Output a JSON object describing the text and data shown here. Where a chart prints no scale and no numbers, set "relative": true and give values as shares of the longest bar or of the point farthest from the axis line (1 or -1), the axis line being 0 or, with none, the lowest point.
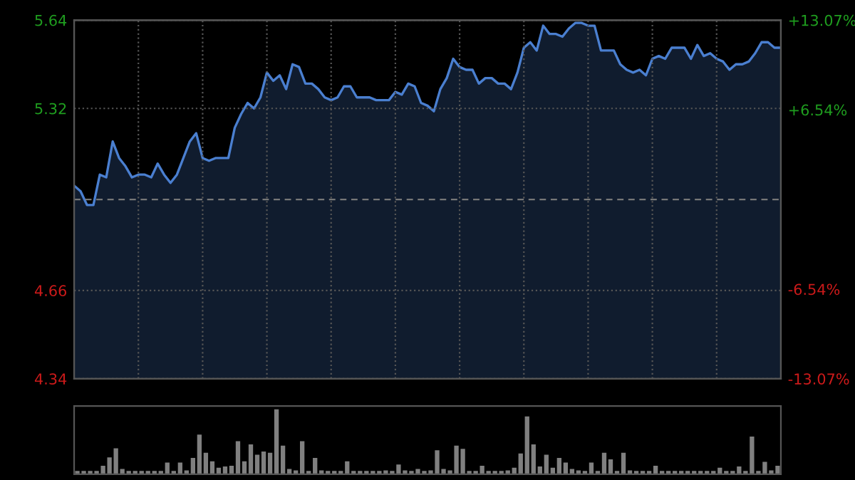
{
  "chart_data": [
    {
      "type": "area",
      "categories": [
        null,
        null,
        null,
        null,
        null,
        null,
        null,
        null,
        null,
        null,
        null,
        null,
        null,
        null,
        null,
        null,
        null,
        null,
        null,
        null,
        null,
        null,
        null,
        null,
        null,
        null,
        null,
        null,
        null,
        null,
        null,
        null,
        null,
        null,
        null,
        null,
        null,
        null,
        null,
        null,
        null,
        null,
        null,
        null,
        null,
        null,
        null,
        null,
        null,
        null,
        null,
        null,
        null,
        null,
        null,
        null,
        null,
        null,
        null,
        null,
        null,
        null,
        null,
        null,
        null,
        null,
        null,
        null,
        null,
        null,
        null,
        null,
        null,
        null,
        null,
        null,
        null,
        null,
        null,
        null,
        null,
        null,
        null,
        null,
        null,
        null,
        null,
        null,
        null,
        null,
        null,
        null,
        null,
        null,
        null,
        null,
        null,
        null,
        null,
        null,
        null,
        null,
        null,
        null,
        null,
        null,
        null,
        null,
        null,
        null,
        null
      ],
      "series": [
        {
          "color": "#4a7fd0",
          "values": [
            5.04,
            5.02,
            4.97,
            4.97,
            5.08,
            5.07,
            5.2,
            5.14,
            5.11,
            5.07,
            5.08,
            5.08,
            5.07,
            5.12,
            5.08,
            5.05,
            5.08,
            5.14,
            5.2,
            5.23,
            5.14,
            5.13,
            5.14,
            5.14,
            5.14,
            5.25,
            5.3,
            5.34,
            5.32,
            5.36,
            5.45,
            5.42,
            5.44,
            5.39,
            5.48,
            5.47,
            5.41,
            5.41,
            5.39,
            5.36,
            5.35,
            5.36,
            5.4,
            5.4,
            5.36,
            5.36,
            5.36,
            5.35,
            5.35,
            5.35,
            5.38,
            5.37,
            5.41,
            5.4,
            5.34,
            5.33,
            5.31,
            5.39,
            5.43,
            5.5,
            5.47,
            5.46,
            5.46,
            5.41,
            5.43,
            5.43,
            5.41,
            5.41,
            5.39,
            5.45,
            5.54,
            5.56,
            5.53,
            5.62,
            5.59,
            5.59,
            5.58,
            5.61,
            5.63,
            5.63,
            5.62,
            5.62,
            5.53,
            5.53,
            5.53,
            5.48,
            5.46,
            5.45,
            5.46,
            5.44,
            5.5,
            5.51,
            5.5,
            5.54,
            5.54,
            5.54,
            5.5,
            5.55,
            5.51,
            5.52,
            5.5,
            5.49,
            5.46,
            5.48,
            5.48,
            5.49,
            5.52,
            5.56,
            5.56,
            5.54,
            5.54
          ]
        }
      ],
      "ylim": [
        4.34,
        5.64
      ],
      "yticks": [
        4.34,
        4.66,
        5.32,
        5.64
      ],
      "y2lim": [
        -13.07,
        13.07
      ],
      "y2ticks": [
        {
          "value": -13.07,
          "label": "-13.07%"
        },
        {
          "value": -6.54,
          "label": "-6.54%"
        },
        {
          "value": 6.54,
          "label": "+6.54%"
        },
        {
          "value": 13.07,
          "label": "+13.07%"
        }
      ],
      "ref_lines": [
        {
          "axis": "y",
          "value": 4.99,
          "color": "#777777",
          "line_style": "dashed"
        }
      ],
      "grid": true,
      "tick_labels": "y"
    },
    {
      "type": "bar",
      "relative": true,
      "color": "#808080",
      "tick_labels": false,
      "categories": [
        null,
        null,
        null,
        null,
        null,
        null,
        null,
        null,
        null,
        null,
        null,
        null,
        null,
        null,
        null,
        null,
        null,
        null,
        null,
        null,
        null,
        null,
        null,
        null,
        null,
        null,
        null,
        null,
        null,
        null,
        null,
        null,
        null,
        null,
        null,
        null,
        null,
        null,
        null,
        null,
        null,
        null,
        null,
        null,
        null,
        null,
        null,
        null,
        null,
        null,
        null,
        null,
        null,
        null,
        null,
        null,
        null,
        null,
        null,
        null,
        null,
        null,
        null,
        null,
        null,
        null,
        null,
        null,
        null,
        null,
        null,
        null,
        null,
        null,
        null,
        null,
        null,
        null,
        null,
        null,
        null,
        null,
        null,
        null,
        null,
        null,
        null,
        null,
        null,
        null,
        null,
        null,
        null,
        null,
        null,
        null,
        null,
        null,
        null,
        null,
        null,
        null,
        null,
        null,
        null,
        null,
        null,
        null,
        null,
        null
      ],
      "values": [
        0.05,
        0.05,
        0.05,
        0.05,
        0.13,
        0.26,
        0.4,
        0.08,
        0.05,
        0.05,
        0.05,
        0.05,
        0.05,
        0.05,
        0.18,
        0.05,
        0.18,
        0.06,
        0.25,
        0.61,
        0.33,
        0.2,
        0.1,
        0.12,
        0.13,
        0.51,
        0.2,
        0.46,
        0.3,
        0.35,
        0.33,
        1,
        0.44,
        0.08,
        0.06,
        0.51,
        0.05,
        0.25,
        0.06,
        0.05,
        0.05,
        0.05,
        0.2,
        0.05,
        0.05,
        0.05,
        0.05,
        0.05,
        0.06,
        0.05,
        0.15,
        0.06,
        0.05,
        0.08,
        0.05,
        0.06,
        0.37,
        0.08,
        0.06,
        0.44,
        0.39,
        0.05,
        0.05,
        0.13,
        0.05,
        0.05,
        0.05,
        0.06,
        0.1,
        0.32,
        0.89,
        0.46,
        0.12,
        0.3,
        0.1,
        0.25,
        0.18,
        0.08,
        0.06,
        0.05,
        0.18,
        0.05,
        0.33,
        0.23,
        0.05,
        0.33,
        0.06,
        0.05,
        0.05,
        0.05,
        0.13,
        0.05,
        0.05,
        0.05,
        0.05,
        0.05,
        0.05,
        0.05,
        0.05,
        0.05,
        0.1,
        0.05,
        0.05,
        0.12,
        0.05,
        0.58,
        0.05,
        0.19,
        0.06,
        0.13
      ]
    }
  ]
}
